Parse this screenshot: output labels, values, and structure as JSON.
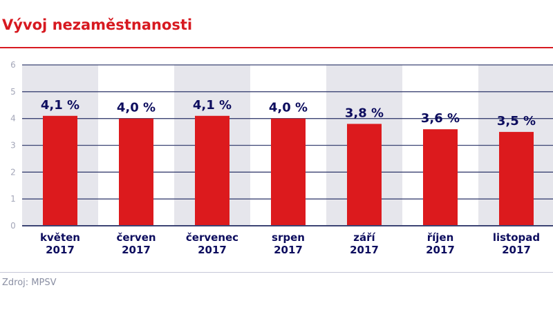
{
  "chart_data": {
    "type": "bar",
    "title": "Vývoj nezaměstnanosti",
    "categories": [
      [
        "květen",
        "2017"
      ],
      [
        "červen",
        "2017"
      ],
      [
        "červenec",
        "2017"
      ],
      [
        "srpen",
        "2017"
      ],
      [
        "září",
        "2017"
      ],
      [
        "říjen",
        "2017"
      ],
      [
        "listopad",
        "2017"
      ]
    ],
    "values": [
      4.1,
      4.0,
      4.1,
      4.0,
      3.8,
      3.6,
      3.5
    ],
    "data_labels": [
      "4,1 %",
      "4,0 %",
      "4,1 %",
      "4,0 %",
      "3,8 %",
      "3,6 %",
      "3,5 %"
    ],
    "yticks": [
      0,
      1,
      2,
      3,
      4,
      5,
      6
    ],
    "ylim": [
      0,
      6
    ],
    "xlabel": "",
    "ylabel": "",
    "grid": true,
    "colors": {
      "bar": "#dc1a1d",
      "label": "#0d0d5e",
      "grid": "#3b4373",
      "band": "#e6e6ec",
      "tick": "#a3a6b8"
    }
  },
  "source": "Zdroj: MPSV"
}
